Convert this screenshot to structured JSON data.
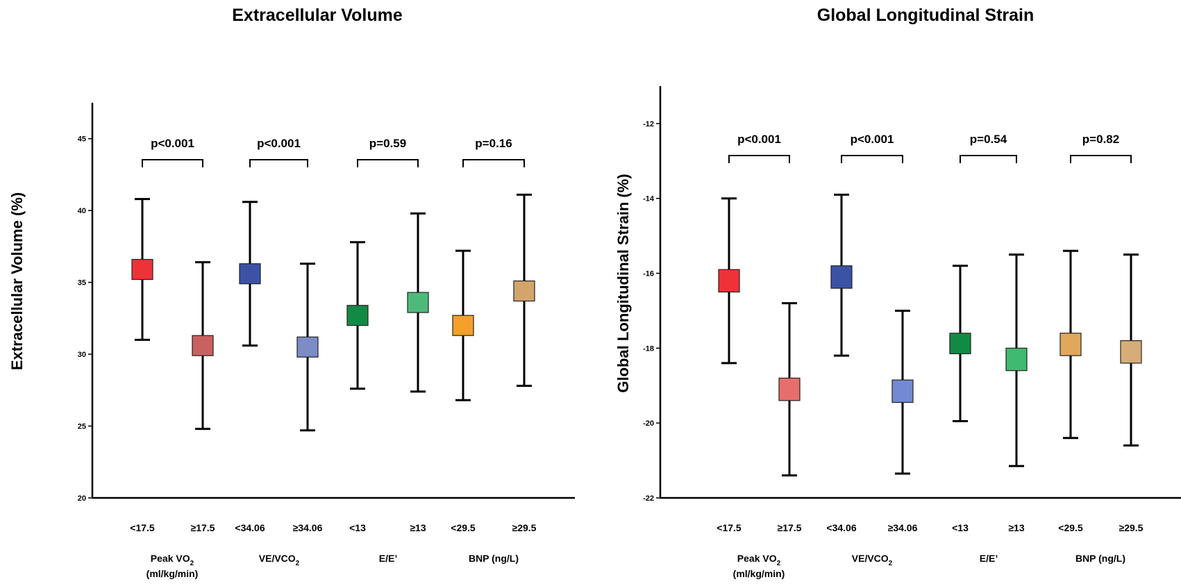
{
  "chart_data": [
    {
      "type": "errorbar",
      "title": "Extracellular Volume",
      "ylabel": "Extracellular Volume (%)",
      "ylim": [
        20,
        47.5
      ],
      "yticks": [
        20,
        25,
        30,
        35,
        40,
        45
      ],
      "groups": [
        {
          "name": "Peak VO",
          "sub": "2",
          "line2": "(ml/kg/min)",
          "p": "p<0.001",
          "items": [
            {
              "label": "<17.5",
              "mean": 35.9,
              "low": 31.0,
              "high": 40.8,
              "se_low": 35.2,
              "se_high": 36.6,
              "color": "#ee3238"
            },
            {
              "label": "≥17.5",
              "mean": 30.6,
              "low": 24.8,
              "high": 36.4,
              "se_low": 29.9,
              "se_high": 31.3,
              "color": "#c96160"
            }
          ]
        },
        {
          "name": "VE/VCO",
          "sub": "2",
          "line2": "",
          "p": "p<0.001",
          "items": [
            {
              "label": "<34.06",
              "mean": 35.6,
              "low": 30.6,
              "high": 40.6,
              "se_low": 34.9,
              "se_high": 36.3,
              "color": "#3b52a5"
            },
            {
              "label": "≥34.06",
              "mean": 30.5,
              "low": 24.7,
              "high": 36.3,
              "se_low": 29.8,
              "se_high": 31.2,
              "color": "#7b8cc6"
            }
          ]
        },
        {
          "name": "E/E’",
          "sub": "",
          "line2": "",
          "p": "p=0.59",
          "items": [
            {
              "label": "<13",
              "mean": 32.7,
              "low": 27.6,
              "high": 37.8,
              "se_low": 32.0,
              "se_high": 33.4,
              "color": "#128a43"
            },
            {
              "label": "≥13",
              "mean": 33.6,
              "low": 27.4,
              "high": 39.8,
              "se_low": 32.9,
              "se_high": 34.3,
              "color": "#4fb97c"
            }
          ]
        },
        {
          "name": "BNP (ng/L)",
          "sub": "",
          "line2": "",
          "p": "p=0.16",
          "items": [
            {
              "label": "<29.5",
              "mean": 32.0,
              "low": 26.8,
              "high": 37.2,
              "se_low": 31.3,
              "se_high": 32.7,
              "color": "#f4a02a"
            },
            {
              "label": "≥29.5",
              "mean": 34.4,
              "low": 27.8,
              "high": 41.1,
              "se_low": 33.7,
              "se_high": 35.1,
              "color": "#d4a56b"
            }
          ]
        }
      ]
    },
    {
      "type": "errorbar",
      "title": "Global Longitudinal Strain",
      "ylabel": "Global Longitudinal Strain (%)",
      "ylim": [
        -22,
        -11
      ],
      "yticks": [
        -22,
        -20,
        -18,
        -16,
        -14,
        -12
      ],
      "groups": [
        {
          "name": "Peak VO",
          "sub": "2",
          "line2": "(ml/kg/min)",
          "p": "p<0.001",
          "items": [
            {
              "label": "<17.5",
              "mean": -16.2,
              "low": -18.4,
              "high": -14.0,
              "se_low": -16.5,
              "se_high": -15.9,
              "color": "#ee3238"
            },
            {
              "label": "≥17.5",
              "mean": -19.1,
              "low": -21.4,
              "high": -16.8,
              "se_low": -19.4,
              "se_high": -18.8,
              "color": "#e66e6c"
            }
          ]
        },
        {
          "name": "VE/VCO",
          "sub": "2",
          "line2": "",
          "p": "p<0.001",
          "items": [
            {
              "label": "<34.06",
              "mean": -16.1,
              "low": -18.2,
              "high": -13.9,
              "se_low": -16.4,
              "se_high": -15.8,
              "color": "#3b52a5"
            },
            {
              "label": "≥34.06",
              "mean": -19.2,
              "low": -21.35,
              "high": -17.0,
              "se_low": -19.45,
              "se_high": -18.85,
              "color": "#7389d1"
            }
          ]
        },
        {
          "name": "E/E’",
          "sub": "",
          "line2": "",
          "p": "p=0.54",
          "items": [
            {
              "label": "<13",
              "mean": -17.9,
              "low": -19.95,
              "high": -15.8,
              "se_low": -18.15,
              "se_high": -17.6,
              "color": "#128a43"
            },
            {
              "label": "≥13",
              "mean": -18.3,
              "low": -21.15,
              "high": -15.5,
              "se_low": -18.6,
              "se_high": -18.0,
              "color": "#3fba70"
            }
          ]
        },
        {
          "name": "BNP (ng/L)",
          "sub": "",
          "line2": "",
          "p": "p=0.82",
          "items": [
            {
              "label": "<29.5",
              "mean": -17.9,
              "low": -20.4,
              "high": -15.4,
              "se_low": -18.2,
              "se_high": -17.6,
              "color": "#e0a85a"
            },
            {
              "label": "≥29.5",
              "mean": -18.1,
              "low": -20.6,
              "high": -15.5,
              "se_low": -18.4,
              "se_high": -17.8,
              "color": "#d6ad79"
            }
          ]
        }
      ]
    }
  ]
}
